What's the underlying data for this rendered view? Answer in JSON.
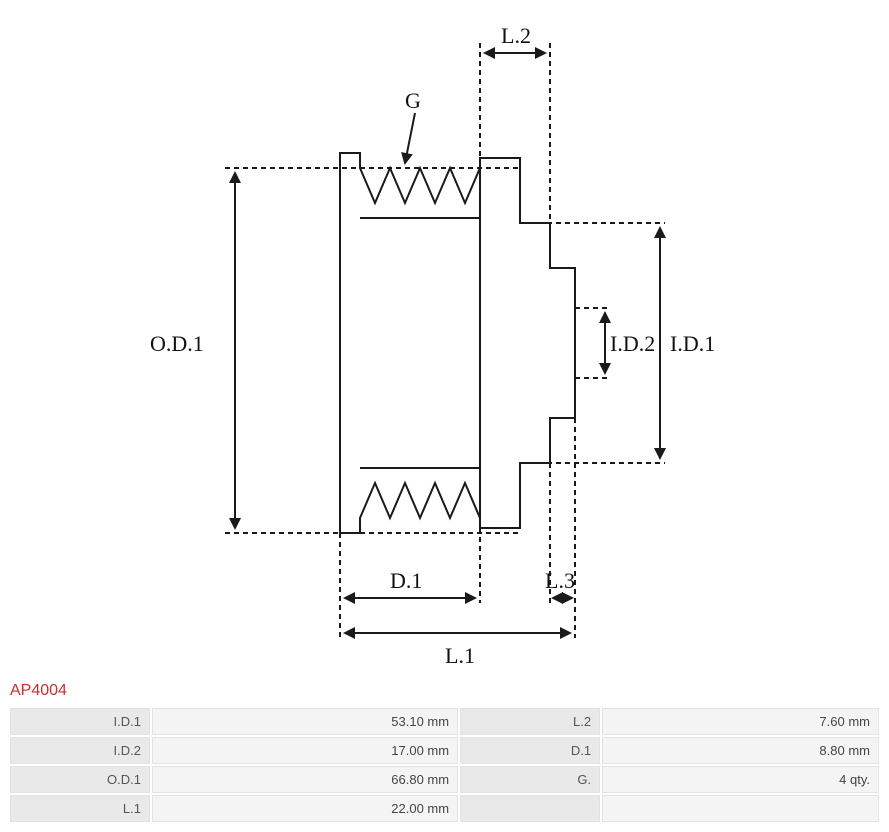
{
  "diagram": {
    "type": "engineering-drawing",
    "stroke_color": "#1a1a1a",
    "stroke_width": 2,
    "dash_pattern": "5,4",
    "background": "#ffffff",
    "font_family": "Georgia, serif",
    "label_fontsize": 22,
    "labels": {
      "OD1": "O.D.1",
      "ID1": "I.D.1",
      "ID2": "I.D.2",
      "L1": "L.1",
      "L2": "L.2",
      "L3": "L.3",
      "D1": "D.1",
      "G": "G"
    }
  },
  "product": {
    "title": "AP4004",
    "title_color": "#c53030"
  },
  "spec_table": {
    "columns": [
      "label",
      "value",
      "label",
      "value"
    ],
    "rows": [
      {
        "l1": "I.D.1",
        "v1": "53.10 mm",
        "l2": "L.2",
        "v2": "7.60 mm"
      },
      {
        "l1": "I.D.2",
        "v1": "17.00 mm",
        "l2": "D.1",
        "v2": "8.80 mm"
      },
      {
        "l1": "O.D.1",
        "v1": "66.80 mm",
        "l2": "G.",
        "v2": "4 qty."
      },
      {
        "l1": "L.1",
        "v1": "22.00 mm",
        "l2": "",
        "v2": ""
      }
    ],
    "cell_bg": "#efefef",
    "label_bg": "#e9e9e9",
    "value_bg": "#f4f4f4",
    "border_color": "#e3e3e3",
    "text_color": "#444444",
    "font_size": 13
  }
}
